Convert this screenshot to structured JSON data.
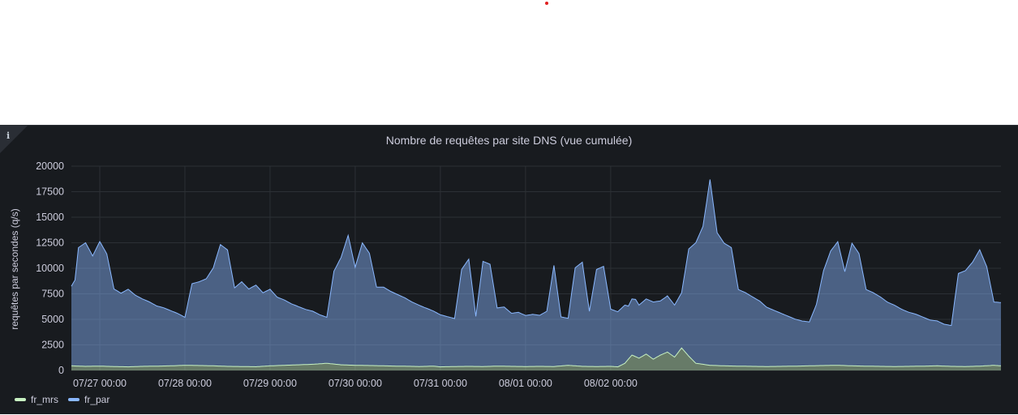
{
  "panel": {
    "title": "Nombre de requêtes par site DNS (vue cumulée)",
    "info_icon": "info-icon"
  },
  "chart_data": {
    "type": "area",
    "stacked": true,
    "title": "Nombre de requêtes par site DNS (vue cumulée)",
    "ylabel": "requêtes par secondes (q/s)",
    "xlabel": "",
    "ylim": [
      0,
      20000
    ],
    "yticks": [
      0,
      2500,
      5000,
      7500,
      10000,
      12500,
      15000,
      17500,
      20000
    ],
    "xticks": [
      "07/27 00:00",
      "07/28 00:00",
      "07/29 00:00",
      "07/30 00:00",
      "07/31 00:00",
      "08/01 00:00",
      "08/02 00:00"
    ],
    "x_unit": "hours since 07/26 00:00",
    "grid": true,
    "legend_position": "bottom-left",
    "series": [
      {
        "name": "fr_mrs",
        "color": "#c8f2c2",
        "x": [
          16,
          20,
          24,
          28,
          32,
          36,
          40,
          44,
          48,
          52,
          56,
          60,
          64,
          68,
          72,
          76,
          80,
          84,
          88,
          92,
          96,
          100,
          104,
          108,
          112,
          114,
          116,
          118,
          120,
          124,
          128,
          132,
          136,
          140,
          144,
          148,
          152,
          156,
          160,
          164,
          168,
          170,
          172,
          174,
          176,
          178,
          180,
          182,
          184,
          186,
          188,
          190,
          192,
          196,
          200,
          204,
          208,
          212,
          216,
          220,
          224,
          228,
          232,
          236,
          240,
          244,
          248,
          252,
          256,
          260,
          264,
          268,
          272,
          276,
          278
        ],
        "values": [
          450,
          400,
          420,
          380,
          350,
          400,
          420,
          450,
          500,
          480,
          450,
          400,
          380,
          360,
          450,
          500,
          550,
          600,
          700,
          550,
          500,
          480,
          450,
          420,
          400,
          380,
          400,
          420,
          350,
          380,
          400,
          380,
          420,
          400,
          380,
          400,
          380,
          500,
          400,
          380,
          400,
          350,
          700,
          1500,
          1200,
          1600,
          1100,
          1500,
          1800,
          1300,
          2200,
          1400,
          700,
          500,
          450,
          420,
          400,
          380,
          400,
          420,
          450,
          480,
          500,
          450,
          420,
          400,
          380,
          400,
          420,
          450,
          400,
          380,
          420,
          500,
          450
        ]
      },
      {
        "name": "fr_par",
        "color": "#8ab8ff",
        "x": [
          16,
          17,
          18,
          20,
          22,
          24,
          26,
          28,
          30,
          32,
          34,
          36,
          38,
          40,
          42,
          44,
          46,
          48,
          50,
          52,
          54,
          56,
          58,
          60,
          62,
          64,
          66,
          68,
          70,
          72,
          74,
          76,
          78,
          80,
          82,
          84,
          86,
          88,
          90,
          92,
          94,
          96,
          98,
          100,
          102,
          104,
          106,
          108,
          110,
          112,
          114,
          116,
          118,
          120,
          122,
          124,
          126,
          128,
          130,
          132,
          134,
          136,
          138,
          140,
          142,
          144,
          146,
          148,
          150,
          152,
          154,
          156,
          158,
          160,
          162,
          164,
          166,
          168,
          170,
          172,
          173,
          174,
          175,
          176,
          177,
          178,
          180,
          182,
          184,
          186,
          188,
          190,
          192,
          194,
          196,
          198,
          200,
          202,
          204,
          206,
          208,
          210,
          212,
          214,
          216,
          218,
          220,
          222,
          224,
          226,
          228,
          230,
          232,
          234,
          236,
          238,
          240,
          242,
          244,
          246,
          248,
          250,
          252,
          254,
          256,
          258,
          260,
          262,
          264,
          266,
          268,
          270,
          272,
          274,
          276,
          277,
          278
        ],
        "values": [
          7800,
          8400,
          11600,
          12100,
          10800,
          12200,
          11000,
          7600,
          7200,
          7600,
          7000,
          6600,
          6300,
          5900,
          5700,
          5400,
          5100,
          4700,
          8000,
          8200,
          8500,
          9600,
          11900,
          11400,
          7700,
          8300,
          7600,
          8000,
          7200,
          7500,
          6700,
          6400,
          6000,
          5700,
          5400,
          5200,
          4800,
          4500,
          9100,
          10500,
          12700,
          9600,
          12000,
          11000,
          7700,
          7700,
          7300,
          7000,
          6700,
          6300,
          6000,
          5700,
          5400,
          5100,
          4900,
          4700,
          9500,
          10500,
          4900,
          10300,
          10000,
          5700,
          5800,
          5200,
          5300,
          5000,
          5100,
          5000,
          5400,
          9900,
          4800,
          4600,
          9600,
          10200,
          5400,
          9500,
          9800,
          5600,
          5400,
          5700,
          5200,
          5500,
          5600,
          5200,
          5300,
          5400,
          5600,
          5300,
          5500,
          5100,
          5400,
          10500,
          11800,
          13500,
          18200,
          13000,
          12000,
          11600,
          7500,
          7200,
          6800,
          6400,
          5800,
          5500,
          5200,
          4900,
          4600,
          4400,
          4300,
          6000,
          9300,
          11200,
          12100,
          9200,
          12000,
          11000,
          7500,
          7200,
          6800,
          6300,
          6000,
          5600,
          5300,
          5100,
          4800,
          4500,
          4400,
          4100,
          4000,
          9100,
          9400,
          10200,
          11400,
          9700,
          6200,
          6200,
          6200
        ]
      }
    ]
  },
  "legend": {
    "items": [
      {
        "label": "fr_mrs",
        "color": "#c8f2c2"
      },
      {
        "label": "fr_par",
        "color": "#8ab8ff"
      }
    ]
  }
}
